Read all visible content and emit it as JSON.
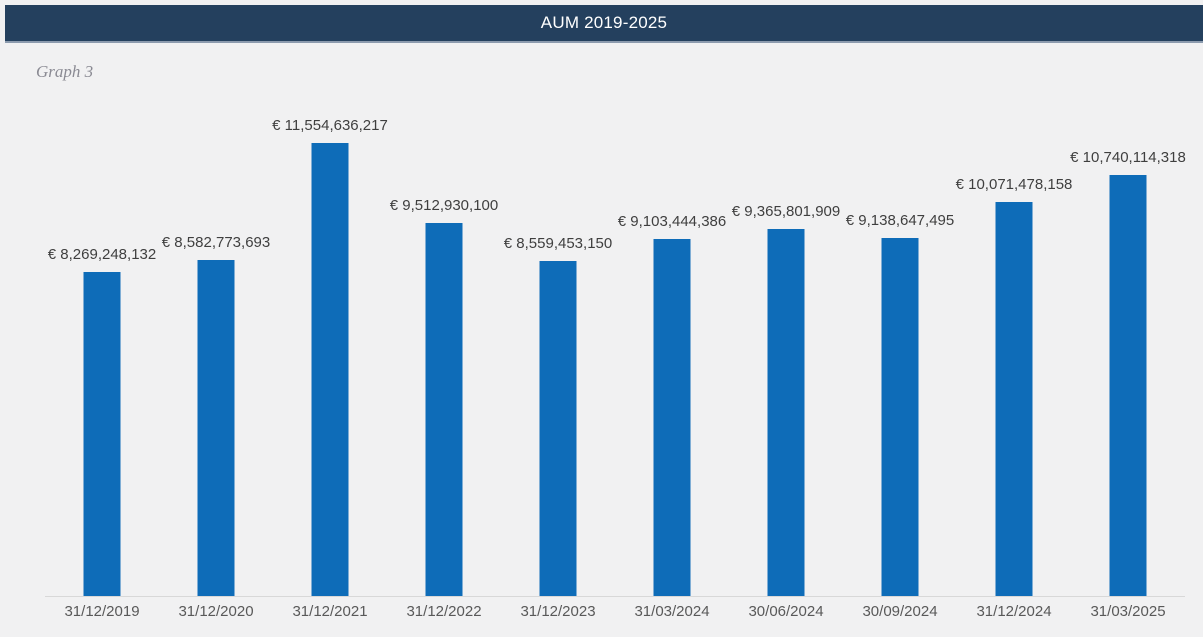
{
  "header": {
    "title": "AUM 2019-2025"
  },
  "subtitle": "Graph 3",
  "colors": {
    "page_bg": "#F1F1F2",
    "header_bg": "#24405E",
    "header_border": "#8C9BAE",
    "title_text": "#FFFFFF",
    "subtitle": "#8A8A93",
    "bar": "#0E6CB8",
    "value_label": "#3F3F3F",
    "axis_label": "#595959",
    "axis_line": "#D8D8D8"
  },
  "chart_data": {
    "type": "bar",
    "title": "AUM 2019-2025",
    "subtitle": "Graph 3",
    "xlabel": "",
    "ylabel": "",
    "ylim": [
      0,
      12000000000
    ],
    "grid": false,
    "legend": false,
    "currency": "EUR",
    "categories": [
      "31/12/2019",
      "31/12/2020",
      "31/12/2021",
      "31/12/2022",
      "31/12/2023",
      "31/03/2024",
      "30/06/2024",
      "30/09/2024",
      "31/12/2024",
      "31/03/2025"
    ],
    "values": [
      8269248132,
      8582773693,
      11554636217,
      9512930100,
      8559453150,
      9103444386,
      9365801909,
      9138647495,
      10071478158,
      10740114318
    ],
    "labels": [
      "€ 8,269,248,132",
      "€ 8,582,773,693",
      "€ 11,554,636,217",
      "€ 9,512,930,100",
      "€ 8,559,453,150",
      "€ 9,103,444,386",
      "€ 9,365,801,909",
      "€ 9,138,647,495",
      "€ 10,071,478,158",
      "€ 10,740,114,318"
    ]
  }
}
